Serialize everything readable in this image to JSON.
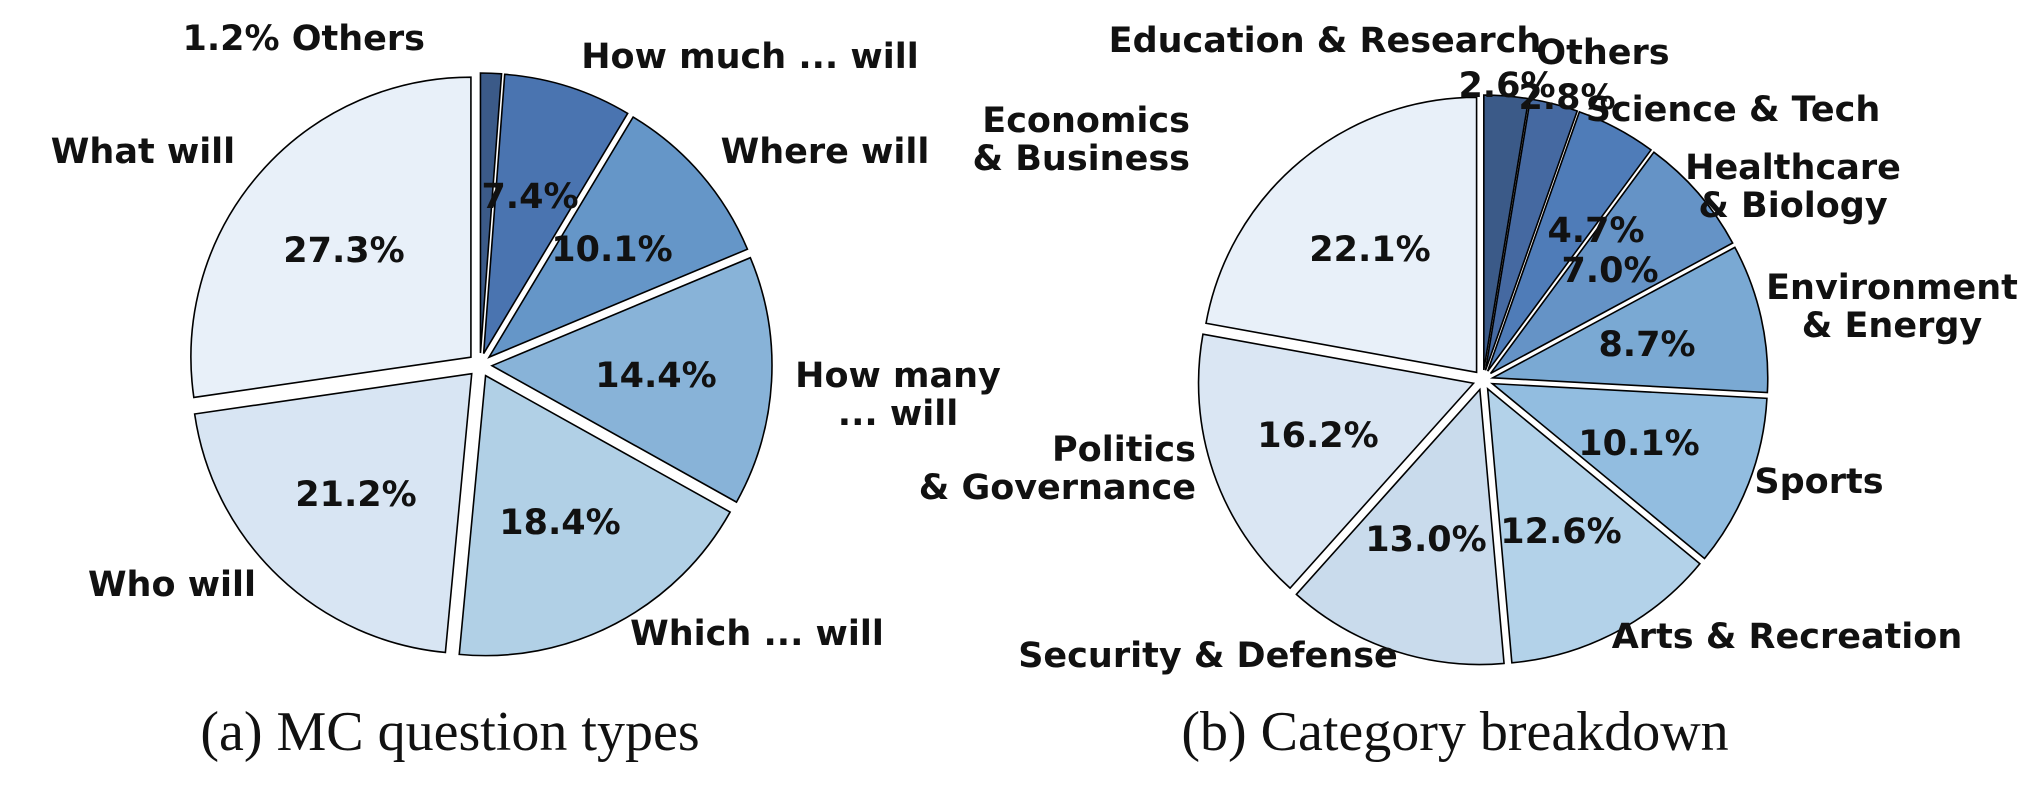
{
  "chart_data": [
    {
      "type": "pie",
      "caption": "(a) MC question types",
      "slices": [
        {
          "label": "Others",
          "value": 1.2,
          "pct_label": "1.2% Others",
          "color": "#3b5a88"
        },
        {
          "label": "How much ... will",
          "value": 7.4,
          "pct_label": "7.4%",
          "color": "#4a74b0"
        },
        {
          "label": "Where will",
          "value": 10.1,
          "pct_label": "10.1%",
          "color": "#6596c8"
        },
        {
          "label": "How many ... will",
          "label_lines": [
            "How many",
            "... will"
          ],
          "value": 14.4,
          "pct_label": "14.4%",
          "color": "#88b3d8"
        },
        {
          "label": "Which ... will",
          "value": 18.4,
          "pct_label": "18.4%",
          "color": "#b1d0e6"
        },
        {
          "label": "Who will",
          "value": 21.2,
          "pct_label": "21.2%",
          "color": "#d8e5f3"
        },
        {
          "label": "What will",
          "value": 27.3,
          "pct_label": "27.3%",
          "color": "#e8f0f9"
        }
      ]
    },
    {
      "type": "pie",
      "caption": "(b) Category breakdown",
      "slices": [
        {
          "label": "Education & Research",
          "value": 2.6,
          "pct_label": "2.6%",
          "color": "#3b5a88"
        },
        {
          "label": "Others",
          "value": 2.8,
          "pct_label": "2.8%",
          "color": "#4569a1"
        },
        {
          "label": "Science & Tech",
          "value": 4.7,
          "pct_label": "4.7%",
          "color": "#4f7cb8"
        },
        {
          "label": "Healthcare & Biology",
          "label_lines": [
            "Healthcare",
            "& Biology"
          ],
          "value": 7.0,
          "pct_label": "7.0%",
          "color": "#6593c6"
        },
        {
          "label": "Environment & Energy",
          "label_lines": [
            "Environment",
            "& Energy"
          ],
          "value": 8.7,
          "pct_label": "8.7%",
          "color": "#7aa9d3"
        },
        {
          "label": "Sports",
          "value": 10.1,
          "pct_label": "10.1%",
          "color": "#92bde0"
        },
        {
          "label": "Arts & Recreation",
          "value": 12.6,
          "pct_label": "12.6%",
          "color": "#b3d2e9"
        },
        {
          "label": "Security & Defense",
          "value": 13.0,
          "pct_label": "13.0%",
          "color": "#c9dbec"
        },
        {
          "label": "Politics & Governance",
          "label_lines": [
            "Politics",
            "& Governance"
          ],
          "value": 16.2,
          "pct_label": "16.2%",
          "color": "#dae6f3"
        },
        {
          "label": "Economics & Business",
          "label_lines": [
            "Economics",
            "& Business"
          ],
          "value": 22.1,
          "pct_label": "22.1%",
          "color": "#e8f0f9"
        }
      ]
    }
  ]
}
